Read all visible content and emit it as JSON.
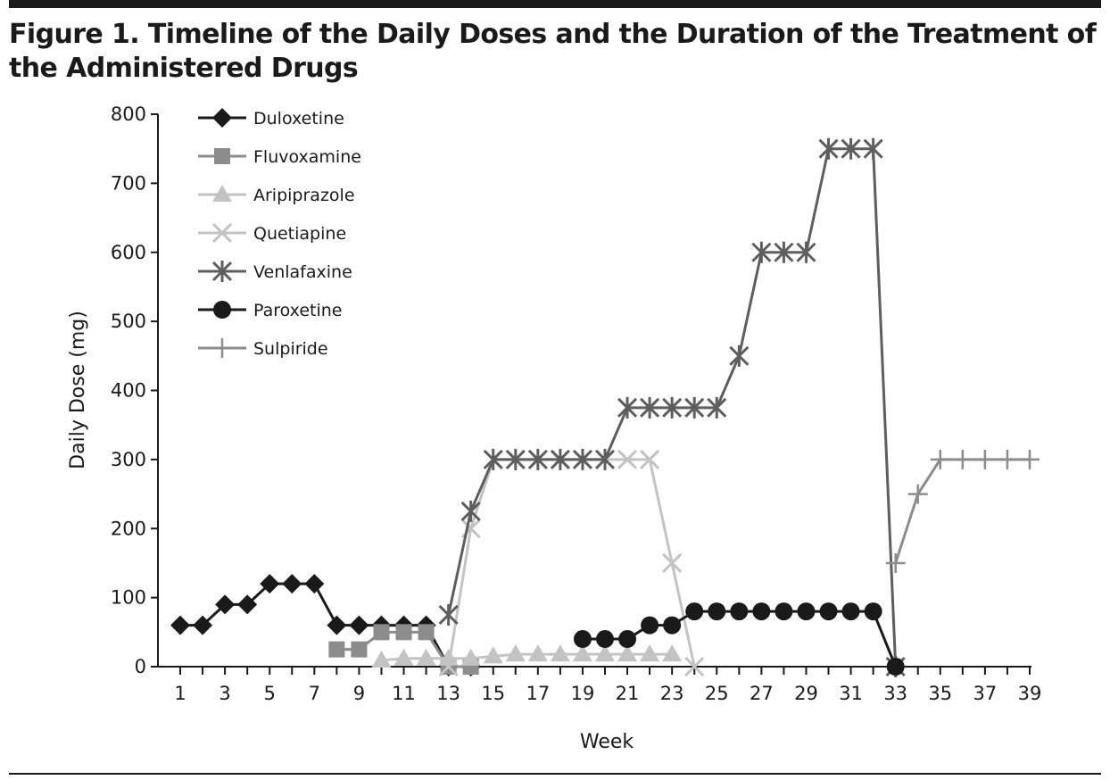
{
  "figure": {
    "title": "Figure 1. Timeline of the Daily Doses and the Duration of the Treatment of the Administered Drugs"
  },
  "chart_data": {
    "type": "line",
    "title": "Figure 1. Timeline of the Daily Doses and the Duration of the Treatment of the Administered Drugs",
    "xlabel": "Week",
    "ylabel": "Daily Dose (mg)",
    "xlim": [
      1,
      39
    ],
    "ylim": [
      0,
      800
    ],
    "xticks": [
      1,
      3,
      5,
      7,
      9,
      11,
      13,
      15,
      17,
      19,
      21,
      23,
      25,
      27,
      29,
      31,
      33,
      35,
      37,
      39
    ],
    "yticks": [
      0,
      100,
      200,
      300,
      400,
      500,
      600,
      700,
      800
    ],
    "grid": false,
    "legend": "top-left",
    "series": [
      {
        "name": "Duloxetine",
        "color": "#1a1a1a",
        "marker": "diamond",
        "points": [
          [
            1,
            60
          ],
          [
            2,
            60
          ],
          [
            3,
            90
          ],
          [
            4,
            90
          ],
          [
            5,
            120
          ],
          [
            6,
            120
          ],
          [
            7,
            120
          ],
          [
            8,
            60
          ],
          [
            9,
            60
          ],
          [
            10,
            60
          ],
          [
            11,
            60
          ],
          [
            12,
            60
          ],
          [
            13,
            0
          ],
          [
            14,
            0
          ]
        ]
      },
      {
        "name": "Fluvoxamine",
        "color": "#8c8c8c",
        "marker": "square",
        "points": [
          [
            8,
            25
          ],
          [
            9,
            25
          ],
          [
            10,
            50
          ],
          [
            11,
            50
          ],
          [
            12,
            50
          ],
          [
            13,
            0
          ],
          [
            14,
            0
          ]
        ]
      },
      {
        "name": "Aripiprazole",
        "color": "#c3c3c3",
        "marker": "triangle",
        "points": [
          [
            10,
            9
          ],
          [
            11,
            12
          ],
          [
            12,
            12
          ],
          [
            13,
            12
          ],
          [
            14,
            12
          ],
          [
            15,
            15
          ],
          [
            16,
            18
          ],
          [
            17,
            18
          ],
          [
            18,
            18
          ],
          [
            19,
            18
          ],
          [
            20,
            18
          ],
          [
            21,
            18
          ],
          [
            22,
            18
          ],
          [
            23,
            18
          ]
        ]
      },
      {
        "name": "Quetiapine",
        "color": "#c3c3c3",
        "marker": "x",
        "points": [
          [
            13,
            0
          ],
          [
            14,
            200
          ],
          [
            15,
            300
          ],
          [
            16,
            300
          ],
          [
            17,
            300
          ],
          [
            18,
            300
          ],
          [
            19,
            300
          ],
          [
            20,
            300
          ],
          [
            21,
            300
          ],
          [
            22,
            300
          ],
          [
            23,
            150
          ],
          [
            24,
            0
          ]
        ]
      },
      {
        "name": "Venlafaxine",
        "color": "#5e5e5e",
        "marker": "asterisk",
        "points": [
          [
            13,
            75
          ],
          [
            14,
            225
          ],
          [
            15,
            300
          ],
          [
            16,
            300
          ],
          [
            17,
            300
          ],
          [
            18,
            300
          ],
          [
            19,
            300
          ],
          [
            20,
            300
          ],
          [
            21,
            375
          ],
          [
            22,
            375
          ],
          [
            23,
            375
          ],
          [
            24,
            375
          ],
          [
            25,
            375
          ],
          [
            26,
            450
          ],
          [
            27,
            600
          ],
          [
            28,
            600
          ],
          [
            29,
            600
          ],
          [
            30,
            750
          ],
          [
            31,
            750
          ],
          [
            32,
            750
          ],
          [
            33,
            0
          ]
        ]
      },
      {
        "name": "Paroxetine",
        "color": "#1a1a1a",
        "marker": "circle",
        "points": [
          [
            19,
            40
          ],
          [
            20,
            40
          ],
          [
            21,
            40
          ],
          [
            22,
            60
          ],
          [
            23,
            60
          ],
          [
            24,
            80
          ],
          [
            25,
            80
          ],
          [
            26,
            80
          ],
          [
            27,
            80
          ],
          [
            28,
            80
          ],
          [
            29,
            80
          ],
          [
            30,
            80
          ],
          [
            31,
            80
          ],
          [
            32,
            80
          ],
          [
            33,
            0
          ]
        ]
      },
      {
        "name": "Sulpiride",
        "color": "#8c8c8c",
        "marker": "plus",
        "points": [
          [
            33,
            150
          ],
          [
            34,
            250
          ],
          [
            35,
            300
          ],
          [
            36,
            300
          ],
          [
            37,
            300
          ],
          [
            38,
            300
          ],
          [
            39,
            300
          ]
        ]
      }
    ]
  }
}
